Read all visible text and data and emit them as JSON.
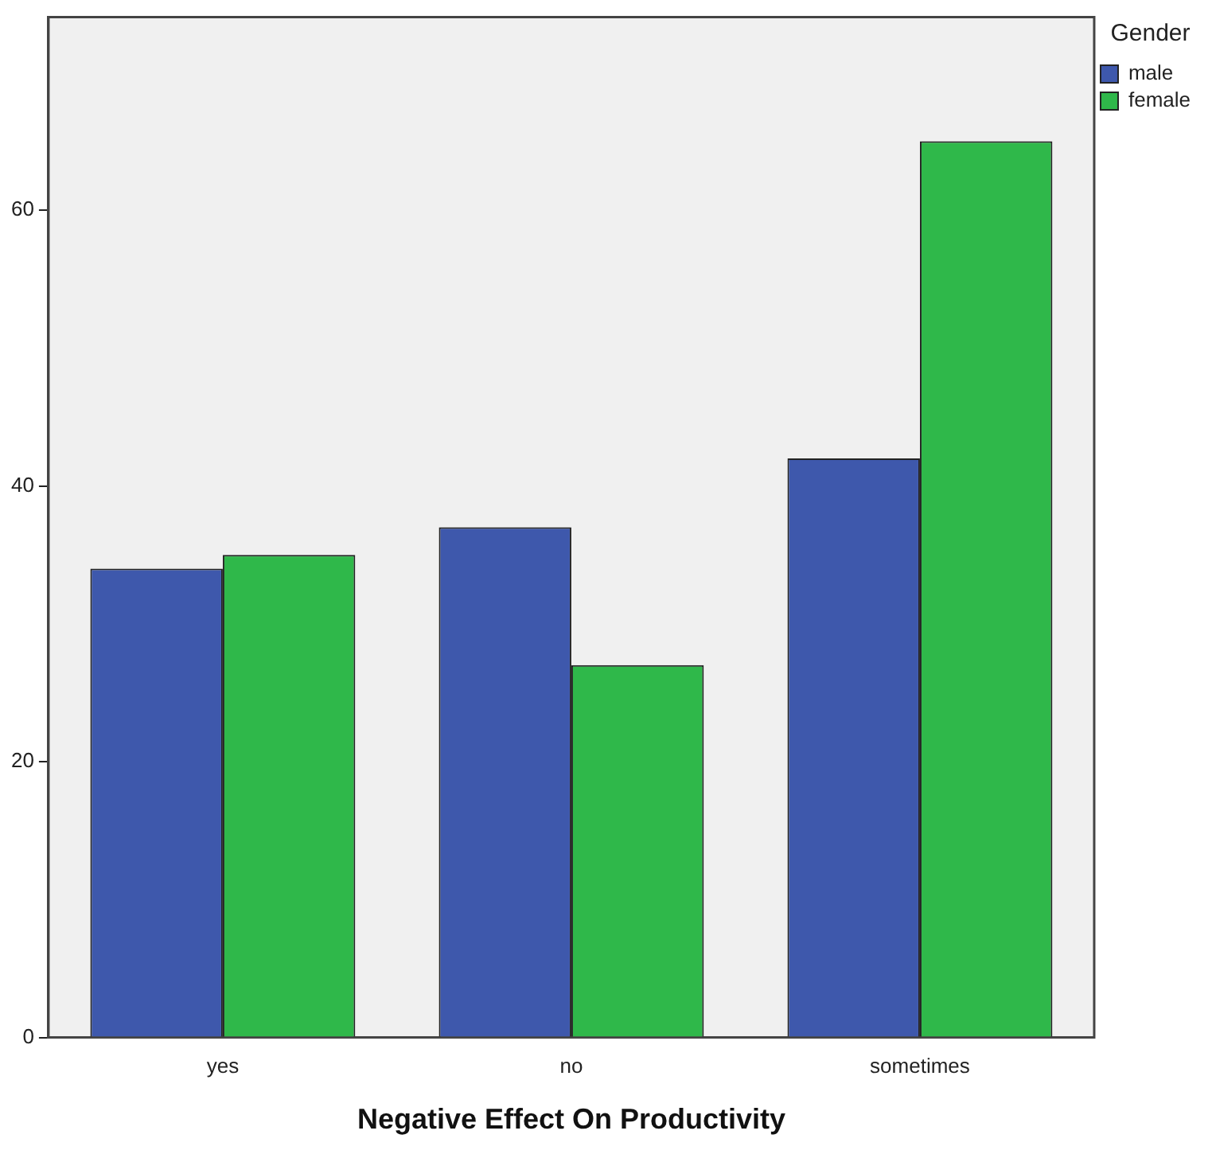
{
  "chart_data": {
    "type": "bar",
    "xlabel": "Negative Effect On Productivity",
    "legend_title": "Gender",
    "categories": [
      "yes",
      "no",
      "sometimes"
    ],
    "series": [
      {
        "name": "male",
        "color": "#3e58ac",
        "values": [
          34,
          37,
          42
        ]
      },
      {
        "name": "female",
        "color": "#2fb84a",
        "values": [
          35,
          27,
          65
        ]
      }
    ],
    "ylim": [
      0,
      74
    ],
    "yticks": [
      0,
      20,
      40,
      60
    ],
    "grid": false,
    "legend": "top right"
  }
}
